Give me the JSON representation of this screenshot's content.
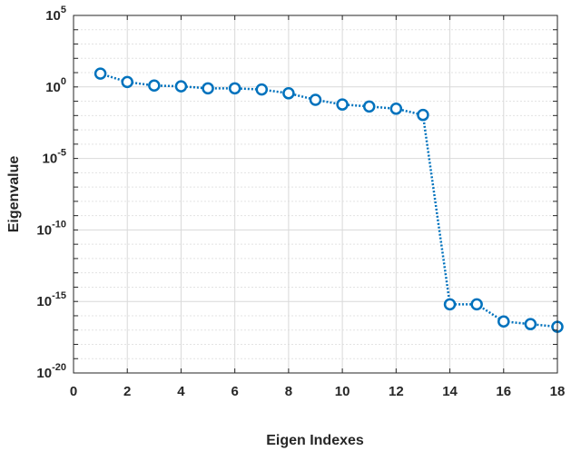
{
  "chart_data": {
    "type": "line",
    "xlabel": "Eigen Indexes",
    "ylabel": "Eigenvalue",
    "xlim": [
      0,
      18
    ],
    "ylim": [
      1e-20,
      100000.0
    ],
    "y_scale": "log",
    "grid": true,
    "x_ticks": [
      "0",
      "2",
      "4",
      "6",
      "8",
      "10",
      "12",
      "14",
      "16",
      "18"
    ],
    "y_ticks": [
      {
        "base": "10",
        "exp": "5"
      },
      {
        "base": "10",
        "exp": "0"
      },
      {
        "base": "10",
        "exp": "-5"
      },
      {
        "base": "10",
        "exp": "-10"
      },
      {
        "base": "10",
        "exp": "-15"
      },
      {
        "base": "10",
        "exp": "-20"
      }
    ],
    "line_style": "dotted",
    "marker": "circle",
    "color": "#0072BD",
    "x": [
      1,
      2,
      3,
      4,
      5,
      6,
      7,
      8,
      9,
      10,
      11,
      12,
      13,
      14,
      15,
      16,
      17,
      18
    ],
    "y": [
      8.5,
      2.2,
      1.26,
      1.1,
      0.8,
      0.8,
      0.66,
      0.36,
      0.126,
      0.059,
      0.043,
      0.03,
      0.011,
      6.3e-16,
      6.3e-16,
      4e-17,
      2.6e-17,
      1.7e-17
    ]
  }
}
